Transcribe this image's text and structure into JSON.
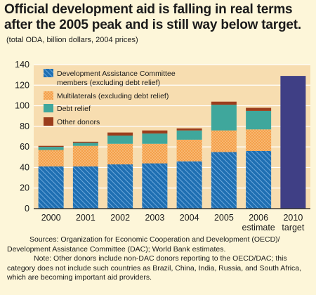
{
  "title": "Official development aid is falling in real terms after the 2005 peak and is still way below target.",
  "subtitle": "(total ODA, billion dollars, 2004 prices)",
  "colors": {
    "dac": "#1f6fb2",
    "multilaterals": "#f4a04a",
    "debt_relief": "#3fa79c",
    "other": "#9b3d1c",
    "target": "#3f3f85",
    "plot_bg": "#f7ddb0",
    "background": "#fdf6d9"
  },
  "chart_data": {
    "type": "bar",
    "stacked": true,
    "categories": [
      "2000",
      "2001",
      "2002",
      "2003",
      "2004",
      "2005",
      "2006",
      "2010"
    ],
    "category_sublabels": [
      "",
      "",
      "",
      "",
      "",
      "",
      "estimate",
      "target"
    ],
    "series": [
      {
        "name": "Development Assistance Committee members (excluding debt relief)",
        "key": "dac",
        "values": [
          41,
          41,
          43,
          44,
          46,
          55,
          56,
          null
        ]
      },
      {
        "name": "Multilaterals (excluding debt relief)",
        "key": "multilaterals",
        "values": [
          16,
          20,
          20,
          19,
          21,
          21,
          21,
          null
        ]
      },
      {
        "name": "Debt relief",
        "key": "debt_relief",
        "values": [
          3,
          3,
          8,
          10,
          9,
          25,
          18,
          null
        ]
      },
      {
        "name": "Other donors",
        "key": "other",
        "values": [
          1,
          1,
          3,
          3,
          2,
          3,
          3,
          null
        ]
      }
    ],
    "target": {
      "category": "2010",
      "value": 129
    },
    "ylim": [
      0,
      140
    ],
    "yticks": [
      0,
      20,
      40,
      60,
      80,
      100,
      120,
      140
    ],
    "grid": true,
    "legend": "top-left"
  },
  "sources": {
    "line1": "Sources: Organization for Economic Cooperation and Development (OECD)/",
    "line2": "Development Assistance Committee (DAC); World Bank estimates.",
    "note": "Note: Other donors include non-DAC donors reporting to the OECD/DAC; this category does not include such countries as Brazil, China, India, Russia, and South Africa, which are becoming important aid providers."
  }
}
